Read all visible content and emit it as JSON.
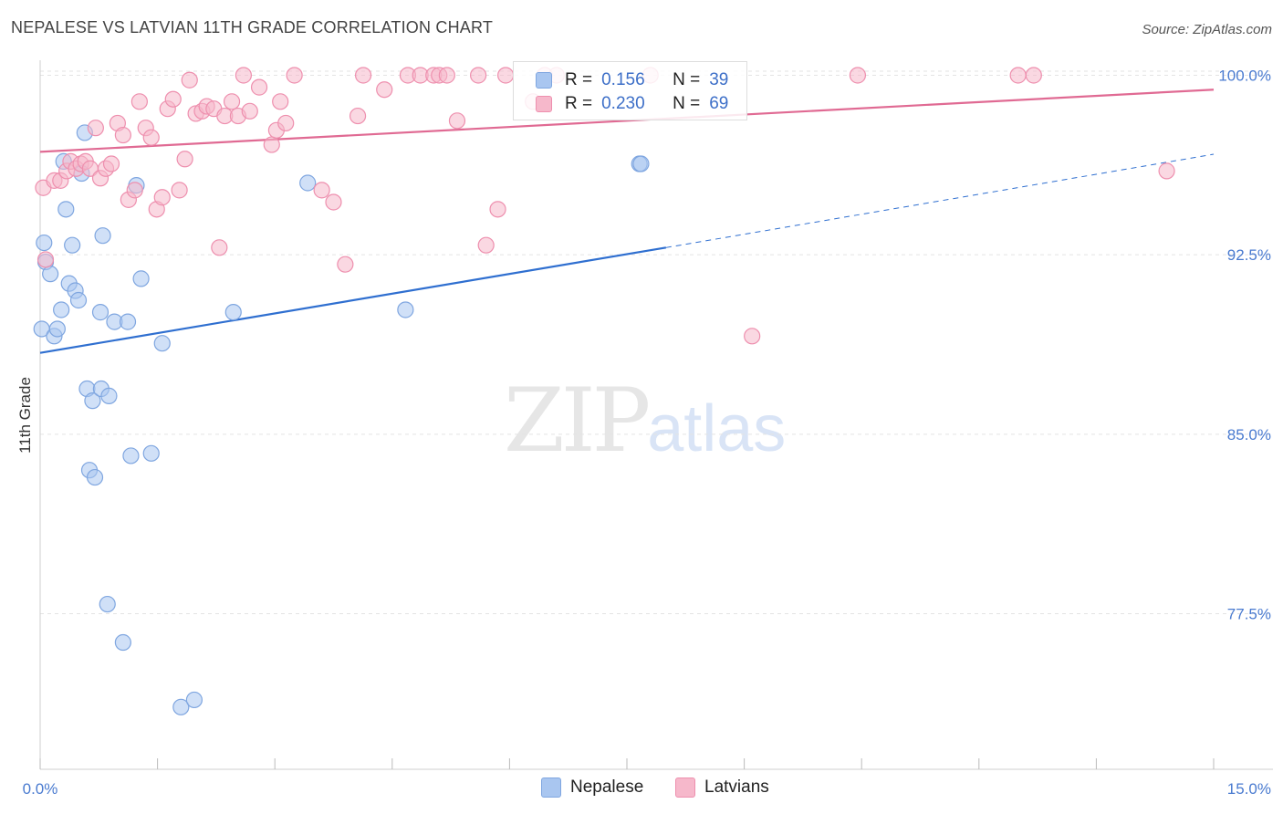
{
  "header": {
    "title": "NEPALESE VS LATVIAN 11TH GRADE CORRELATION CHART",
    "source": "Source: ZipAtlas.com"
  },
  "watermark": {
    "zip": "ZIP",
    "atlas": "atlas"
  },
  "legend": {
    "rows": [
      {
        "r_label": "R =",
        "r_value": "0.156",
        "n_label": "N =",
        "n_value": "39",
        "color": "#a9c6f0",
        "border": "#7fa6e0"
      },
      {
        "r_label": "R =",
        "r_value": "0.230",
        "n_label": "N =",
        "n_value": "69",
        "color": "#f6b8cb",
        "border": "#ee8fae"
      }
    ]
  },
  "bottom_legend": [
    {
      "label": "Nepalese",
      "color": "#a9c6f0",
      "border": "#7fa6e0"
    },
    {
      "label": "Latvians",
      "color": "#f6b8cb",
      "border": "#ee8fae"
    }
  ],
  "chart_data": {
    "type": "scatter",
    "title": "NEPALESE VS LATVIAN 11TH GRADE CORRELATION CHART",
    "xlabel": "",
    "ylabel": "11th Grade",
    "xlim": [
      0.0,
      15.0
    ],
    "ylim": [
      71.0,
      100.4
    ],
    "x_tick_labels": [
      "0.0%",
      "15.0%"
    ],
    "y_ticks": [
      77.5,
      85.0,
      92.5,
      100.0
    ],
    "y_tick_labels": [
      "77.5%",
      "85.0%",
      "92.5%",
      "100.0%"
    ],
    "grid": true,
    "series": [
      {
        "name": "Nepalese",
        "color": "#7fa6e0",
        "fill": "#a9c6f0",
        "line_color": "#2f6fd0",
        "trend": {
          "x0": 0.0,
          "y0": 88.4,
          "x1": 8.0,
          "y1": 92.8,
          "dash_to_x": 15.0,
          "dash_to_y": 96.7
        },
        "points": [
          {
            "x": 0.02,
            "y": 89.4
          },
          {
            "x": 0.05,
            "y": 93.0
          },
          {
            "x": 0.07,
            "y": 92.2
          },
          {
            "x": 0.13,
            "y": 91.7
          },
          {
            "x": 0.18,
            "y": 89.1
          },
          {
            "x": 0.22,
            "y": 89.4
          },
          {
            "x": 0.27,
            "y": 90.2
          },
          {
            "x": 0.3,
            "y": 96.4
          },
          {
            "x": 0.33,
            "y": 94.4
          },
          {
            "x": 0.37,
            "y": 91.3
          },
          {
            "x": 0.41,
            "y": 92.9
          },
          {
            "x": 0.45,
            "y": 91.0
          },
          {
            "x": 0.49,
            "y": 90.6
          },
          {
            "x": 0.53,
            "y": 95.9
          },
          {
            "x": 0.57,
            "y": 97.6
          },
          {
            "x": 0.6,
            "y": 86.9
          },
          {
            "x": 0.63,
            "y": 83.5
          },
          {
            "x": 0.67,
            "y": 86.4
          },
          {
            "x": 0.7,
            "y": 83.2
          },
          {
            "x": 0.77,
            "y": 90.1
          },
          {
            "x": 0.8,
            "y": 93.3
          },
          {
            "x": 0.78,
            "y": 86.9
          },
          {
            "x": 0.88,
            "y": 86.6
          },
          {
            "x": 0.86,
            "y": 77.9
          },
          {
            "x": 0.95,
            "y": 89.7
          },
          {
            "x": 1.06,
            "y": 76.3
          },
          {
            "x": 1.12,
            "y": 89.7
          },
          {
            "x": 1.16,
            "y": 84.1
          },
          {
            "x": 1.23,
            "y": 95.4
          },
          {
            "x": 1.29,
            "y": 91.5
          },
          {
            "x": 1.42,
            "y": 84.2
          },
          {
            "x": 1.56,
            "y": 88.8
          },
          {
            "x": 1.8,
            "y": 73.6
          },
          {
            "x": 1.97,
            "y": 73.9
          },
          {
            "x": 2.47,
            "y": 90.1
          },
          {
            "x": 3.42,
            "y": 95.5
          },
          {
            "x": 4.67,
            "y": 90.2
          },
          {
            "x": 7.66,
            "y": 96.3
          },
          {
            "x": 7.68,
            "y": 96.3
          }
        ]
      },
      {
        "name": "Latvians",
        "color": "#ee8fae",
        "fill": "#f6b8cb",
        "line_color": "#e06a93",
        "trend": {
          "x0": 0.0,
          "y0": 96.8,
          "x1": 15.0,
          "y1": 99.4
        },
        "points": [
          {
            "x": 0.04,
            "y": 95.3
          },
          {
            "x": 0.07,
            "y": 92.3
          },
          {
            "x": 0.18,
            "y": 95.6
          },
          {
            "x": 0.26,
            "y": 95.6
          },
          {
            "x": 0.34,
            "y": 96.0
          },
          {
            "x": 0.39,
            "y": 96.4
          },
          {
            "x": 0.46,
            "y": 96.1
          },
          {
            "x": 0.52,
            "y": 96.3
          },
          {
            "x": 0.58,
            "y": 96.4
          },
          {
            "x": 0.64,
            "y": 96.1
          },
          {
            "x": 0.71,
            "y": 97.8
          },
          {
            "x": 0.77,
            "y": 95.7
          },
          {
            "x": 0.84,
            "y": 96.1
          },
          {
            "x": 0.91,
            "y": 96.3
          },
          {
            "x": 0.99,
            "y": 98.0
          },
          {
            "x": 1.06,
            "y": 97.5
          },
          {
            "x": 1.13,
            "y": 94.8
          },
          {
            "x": 1.21,
            "y": 95.2
          },
          {
            "x": 1.27,
            "y": 98.9
          },
          {
            "x": 1.35,
            "y": 97.8
          },
          {
            "x": 1.42,
            "y": 97.4
          },
          {
            "x": 1.49,
            "y": 94.4
          },
          {
            "x": 1.56,
            "y": 94.9
          },
          {
            "x": 1.63,
            "y": 98.6
          },
          {
            "x": 1.7,
            "y": 99.0
          },
          {
            "x": 1.78,
            "y": 95.2
          },
          {
            "x": 1.85,
            "y": 96.5
          },
          {
            "x": 1.91,
            "y": 99.8
          },
          {
            "x": 1.99,
            "y": 98.4
          },
          {
            "x": 2.07,
            "y": 98.5
          },
          {
            "x": 2.13,
            "y": 98.7
          },
          {
            "x": 2.22,
            "y": 98.6
          },
          {
            "x": 2.29,
            "y": 92.8
          },
          {
            "x": 2.36,
            "y": 98.3
          },
          {
            "x": 2.45,
            "y": 98.9
          },
          {
            "x": 2.53,
            "y": 98.3
          },
          {
            "x": 2.6,
            "y": 100.0
          },
          {
            "x": 2.68,
            "y": 98.5
          },
          {
            "x": 2.8,
            "y": 99.5
          },
          {
            "x": 2.96,
            "y": 97.1
          },
          {
            "x": 3.02,
            "y": 97.7
          },
          {
            "x": 3.07,
            "y": 98.9
          },
          {
            "x": 3.14,
            "y": 98.0
          },
          {
            "x": 3.25,
            "y": 100.0
          },
          {
            "x": 3.6,
            "y": 95.2
          },
          {
            "x": 3.75,
            "y": 94.7
          },
          {
            "x": 3.9,
            "y": 92.1
          },
          {
            "x": 4.06,
            "y": 98.3
          },
          {
            "x": 4.13,
            "y": 100.0
          },
          {
            "x": 4.4,
            "y": 99.4
          },
          {
            "x": 4.7,
            "y": 100.0
          },
          {
            "x": 4.86,
            "y": 100.0
          },
          {
            "x": 5.03,
            "y": 100.0
          },
          {
            "x": 5.1,
            "y": 100.0
          },
          {
            "x": 5.2,
            "y": 100.0
          },
          {
            "x": 5.33,
            "y": 98.1
          },
          {
            "x": 5.6,
            "y": 100.0
          },
          {
            "x": 5.7,
            "y": 92.9
          },
          {
            "x": 5.85,
            "y": 94.4
          },
          {
            "x": 5.95,
            "y": 100.0
          },
          {
            "x": 6.3,
            "y": 98.9
          },
          {
            "x": 6.45,
            "y": 100.0
          },
          {
            "x": 6.6,
            "y": 100.0
          },
          {
            "x": 7.8,
            "y": 100.0
          },
          {
            "x": 9.1,
            "y": 89.1
          },
          {
            "x": 10.45,
            "y": 100.0
          },
          {
            "x": 12.5,
            "y": 100.0
          },
          {
            "x": 12.7,
            "y": 100.0
          },
          {
            "x": 14.4,
            "y": 96.0
          }
        ]
      }
    ]
  }
}
